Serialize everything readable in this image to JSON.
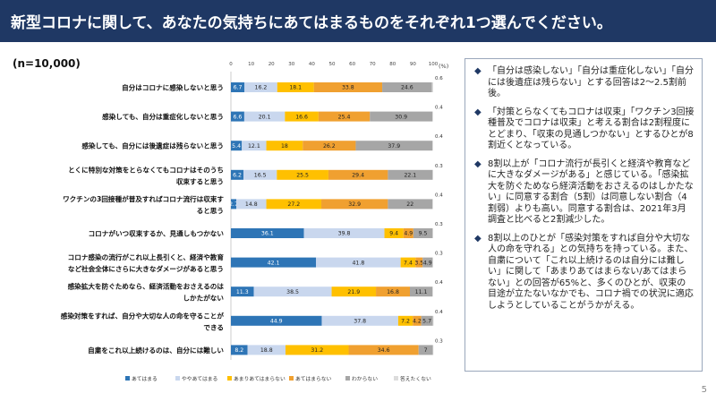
{
  "header": {
    "title": "新型コロナに関して、あなたの気持ちにあてはまるものをそれぞれ1つ選んでください。"
  },
  "sample_label": "(n=10,000)",
  "page_number": "5",
  "notes": [
    "「自分は感染しない」「自分は重症化しない」「自分には後遺症は残らない」とする回答は2～2.5割前後。",
    "「対策とらなくてもコロナは収束」「ワクチン3回接種普及でコロナは収束」と考える割合は2割程度にとどまり、「収束の見通しつかない」とするひとが8割近くとなっている。",
    "8割以上が「コロナ流行が長引くと経済や教育などに大きなダメージがある」と感じている。「感染拡大を防ぐためなら経済活動をおさえるのはしかたない」に同意する割合（5割）は同意しない割合（4割弱）よりも高い。同意する割合は、2021年3月調査と比べると2割減少した。",
    "8割以上のひとが「感染対策をすれば自分や大切な人の命を守れる」との気持ちを持っている。また、自粛について「これ以上続けるのは自分には難しい」に関して「あまりあてはまらない/あてはまらない」との回答が65%と、多くのひとが、収束の目途が立たないなかでも、コロナ禍での状況に適応しようとしていることがうかがえる。"
  ],
  "colors": {
    "header_bg": "#1f3864",
    "series": [
      "#2e75b6",
      "#c9d7ee",
      "#ffc000",
      "#f0a030",
      "#a6a6a6",
      "#dcdcdc"
    ]
  },
  "chart_data": {
    "type": "bar",
    "orientation": "horizontal",
    "stacked": true,
    "xlim": [
      0,
      100
    ],
    "x_unit": "(%)",
    "x_ticks": [
      "0",
      "10",
      "20",
      "30",
      "40",
      "50",
      "60",
      "70",
      "80",
      "90",
      "100"
    ],
    "categories": [
      [
        "自分はコロナに感染しないと思う"
      ],
      [
        "感染しても、自分は重症化しないと思う"
      ],
      [
        "感染しても、自分には後遺症は残らないと思う"
      ],
      [
        "とくに特別な対策をとらなくてもコロナはそのうち",
        "収束すると思う"
      ],
      [
        "ワクチンの3回接種が普及すればコロナ流行は収束す",
        "ると思う"
      ],
      [
        "コロナがいつ収束するか、見通しもつかない"
      ],
      [
        "コロナ感染の流行がこれ以上長引くと、経済や教育",
        "など社会全体にさらに大きなダメージがあると思う"
      ],
      [
        "感染拡大を防ぐためなら、経済活動をおさえるのは",
        "しかたがない"
      ],
      [
        "感染対策をすれば、自分や大切な人の命を守ることが",
        "できる"
      ],
      [
        "自粛をこれ以上続けるのは、自分には難しい"
      ]
    ],
    "series": [
      {
        "name": "あてはまる",
        "values": [
          6.7,
          6.6,
          5.4,
          6.2,
          2.7,
          36.1,
          42.1,
          11.3,
          44.9,
          8.2
        ]
      },
      {
        "name": "ややあてはまる",
        "values": [
          16.2,
          20.1,
          12.1,
          16.5,
          14.8,
          39.8,
          41.8,
          38.5,
          37.8,
          18.8
        ]
      },
      {
        "name": "あまりあてはまらない",
        "values": [
          18.1,
          16.6,
          18.0,
          25.5,
          27.2,
          9.4,
          7.4,
          21.9,
          7.2,
          31.2
        ]
      },
      {
        "name": "あてはまらない",
        "values": [
          33.8,
          25.4,
          26.2,
          29.4,
          32.9,
          4.9,
          3.5,
          16.8,
          4.2,
          34.6
        ]
      },
      {
        "name": "わからない",
        "values": [
          24.6,
          30.9,
          37.9,
          22.1,
          22.0,
          9.5,
          4.9,
          11.1,
          5.7,
          7.0
        ]
      },
      {
        "name": "答えたくない",
        "values": [
          0.6,
          0.4,
          0.4,
          0.3,
          0.4,
          0.3,
          0.3,
          0.4,
          0.4,
          0.3
        ]
      }
    ]
  }
}
